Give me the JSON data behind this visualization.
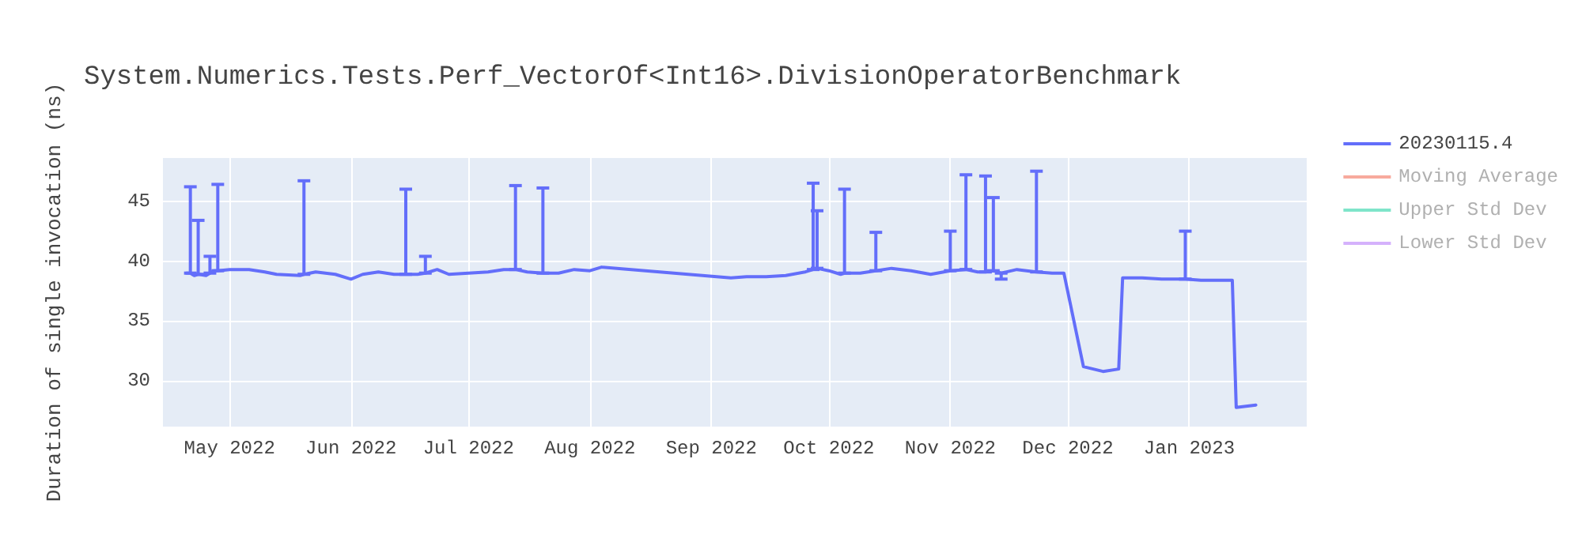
{
  "chart_data": {
    "type": "line",
    "title": "System.Numerics.Tests.Perf_VectorOf<Int16>.DivisionOperatorBenchmark",
    "ylabel": "Duration of single invocation (ns)",
    "x": [
      "2022-04-20",
      "2022-04-21",
      "2022-04-22",
      "2022-04-23",
      "2022-04-25",
      "2022-04-26",
      "2022-04-27",
      "2022-04-28",
      "2022-05-01",
      "2022-05-06",
      "2022-05-10",
      "2022-05-13",
      "2022-05-19",
      "2022-05-20",
      "2022-05-23",
      "2022-05-28",
      "2022-06-01",
      "2022-06-04",
      "2022-06-08",
      "2022-06-12",
      "2022-06-15",
      "2022-06-18",
      "2022-06-20",
      "2022-06-23",
      "2022-06-26",
      "2022-07-01",
      "2022-07-06",
      "2022-07-10",
      "2022-07-13",
      "2022-07-16",
      "2022-07-20",
      "2022-07-24",
      "2022-07-28",
      "2022-08-01",
      "2022-08-04",
      "2022-09-06",
      "2022-09-10",
      "2022-09-15",
      "2022-09-20",
      "2022-09-25",
      "2022-09-27",
      "2022-09-28",
      "2022-10-01",
      "2022-10-04",
      "2022-10-05",
      "2022-10-09",
      "2022-10-13",
      "2022-10-17",
      "2022-10-22",
      "2022-10-27",
      "2022-11-01",
      "2022-11-05",
      "2022-11-08",
      "2022-11-10",
      "2022-11-12",
      "2022-11-14",
      "2022-11-18",
      "2022-11-23",
      "2022-11-27",
      "2022-11-30",
      "2022-12-05",
      "2022-12-10",
      "2022-12-14",
      "2022-12-15",
      "2022-12-20",
      "2022-12-25",
      "2022-12-31",
      "2023-01-04",
      "2023-01-08",
      "2023-01-12",
      "2023-01-13",
      "2023-01-18"
    ],
    "series": [
      {
        "name": "20230115.4",
        "color": "#636efa",
        "values": [
          39.0,
          39.0,
          38.8,
          38.9,
          38.8,
          39.0,
          39.2,
          39.2,
          39.3,
          39.3,
          39.1,
          38.9,
          38.8,
          38.9,
          39.1,
          38.9,
          38.5,
          38.9,
          39.1,
          38.9,
          38.9,
          38.9,
          39.0,
          39.3,
          38.9,
          39.0,
          39.1,
          39.3,
          39.3,
          39.1,
          39.0,
          39.0,
          39.3,
          39.2,
          39.5,
          38.6,
          38.7,
          38.7,
          38.8,
          39.1,
          39.3,
          39.4,
          39.2,
          38.9,
          39.0,
          39.0,
          39.2,
          39.4,
          39.2,
          38.9,
          39.2,
          39.3,
          39.1,
          39.1,
          39.2,
          39.0,
          39.3,
          39.1,
          39.0,
          39.0,
          31.2,
          30.8,
          31.0,
          38.6,
          38.6,
          38.5,
          38.5,
          38.4,
          38.4,
          38.4,
          27.8,
          28.0
        ],
        "errors": [
          null,
          [
            39.0,
            46.2
          ],
          null,
          [
            38.9,
            43.4
          ],
          null,
          [
            39.0,
            40.4
          ],
          null,
          [
            39.2,
            46.4
          ],
          null,
          null,
          null,
          null,
          null,
          [
            38.9,
            46.7
          ],
          null,
          null,
          null,
          null,
          null,
          null,
          [
            38.9,
            46.0
          ],
          null,
          [
            39.0,
            40.4
          ],
          null,
          null,
          null,
          null,
          null,
          [
            39.3,
            46.3
          ],
          null,
          [
            39.0,
            46.1
          ],
          null,
          null,
          null,
          null,
          null,
          null,
          null,
          null,
          null,
          [
            39.3,
            46.5
          ],
          [
            39.4,
            44.2
          ],
          null,
          null,
          [
            39.0,
            46.0
          ],
          null,
          [
            39.2,
            42.4
          ],
          null,
          null,
          null,
          [
            39.2,
            42.5
          ],
          [
            39.3,
            47.2
          ],
          null,
          [
            39.1,
            47.1
          ],
          [
            39.2,
            45.3
          ],
          [
            38.5,
            39.0
          ],
          null,
          [
            39.1,
            47.5
          ],
          null,
          null,
          null,
          null,
          null,
          null,
          null,
          null,
          [
            38.5,
            42.5
          ],
          null,
          null,
          null,
          null,
          null
        ]
      },
      {
        "name": "Moving Average",
        "color": "#ef553b",
        "values": [
          null,
          null,
          null,
          null,
          null,
          null,
          null,
          null,
          null,
          null,
          null,
          null,
          null,
          null,
          null,
          null,
          null,
          null,
          null,
          null,
          null,
          null,
          null,
          null,
          null,
          null,
          null,
          null,
          null,
          null,
          null,
          null,
          null,
          null,
          null,
          null,
          null,
          null,
          null,
          null,
          null,
          null,
          null,
          null,
          null,
          null,
          null,
          null,
          null,
          null,
          null,
          null,
          null,
          null,
          null,
          null,
          null,
          null,
          null,
          null,
          null,
          null,
          null,
          null,
          null,
          null,
          null,
          null,
          null,
          null,
          null,
          null
        ]
      },
      {
        "name": "Upper Std Dev",
        "color": "#00cc96",
        "values": [
          null,
          null,
          null,
          null,
          null,
          null,
          null,
          null,
          null,
          null,
          null,
          null,
          null,
          null,
          null,
          null,
          null,
          null,
          null,
          null,
          null,
          null,
          null,
          null,
          null,
          null,
          null,
          null,
          null,
          null,
          null,
          null,
          null,
          null,
          null,
          null,
          null,
          null,
          null,
          null,
          null,
          null,
          null,
          null,
          null,
          null,
          null,
          null,
          null,
          null,
          null,
          null,
          null,
          null,
          null,
          null,
          null,
          null,
          null,
          null,
          null,
          null,
          null,
          null,
          null,
          null,
          null,
          null,
          null,
          null,
          null,
          null
        ]
      },
      {
        "name": "Lower Std Dev",
        "color": "#ab63fa",
        "values": [
          null,
          null,
          null,
          null,
          null,
          null,
          null,
          null,
          null,
          null,
          null,
          null,
          null,
          null,
          null,
          null,
          null,
          null,
          null,
          null,
          null,
          null,
          null,
          null,
          null,
          null,
          null,
          null,
          null,
          null,
          null,
          null,
          null,
          null,
          null,
          null,
          null,
          null,
          null,
          null,
          null,
          null,
          null,
          null,
          null,
          null,
          null,
          null,
          null,
          null,
          null,
          null,
          null,
          null,
          null,
          null,
          null,
          null,
          null,
          null,
          null,
          null,
          null,
          null,
          null,
          null,
          null,
          null,
          null,
          null,
          null,
          null
        ]
      }
    ],
    "xlim": [
      "2022-04-14",
      "2023-01-31"
    ],
    "xticks": [
      {
        "value": "2022-05-01",
        "label": "May 2022"
      },
      {
        "value": "2022-06-01",
        "label": "Jun 2022"
      },
      {
        "value": "2022-07-01",
        "label": "Jul 2022"
      },
      {
        "value": "2022-08-01",
        "label": "Aug 2022"
      },
      {
        "value": "2022-09-01",
        "label": "Sep 2022"
      },
      {
        "value": "2022-10-01",
        "label": "Oct 2022"
      },
      {
        "value": "2022-11-01",
        "label": "Nov 2022"
      },
      {
        "value": "2022-12-01",
        "label": "Dec 2022"
      },
      {
        "value": "2023-01-01",
        "label": "Jan 2023"
      }
    ],
    "ylim": [
      26.2,
      48.6
    ],
    "yticks": [
      30,
      35,
      40,
      45
    ],
    "grid": true,
    "legend": "top right",
    "marker": "none",
    "line_style": "solid"
  }
}
